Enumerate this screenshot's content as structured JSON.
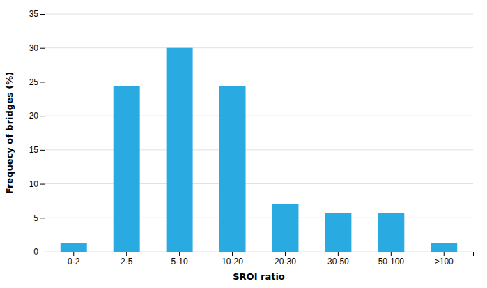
{
  "chart_data": {
    "type": "bar",
    "xlabel": "SROI ratio",
    "ylabel": "Frequecy of bridges (%)",
    "categories": [
      "0-2",
      "2-5",
      "5-10",
      "10-20",
      "20-30",
      "30-50",
      "50-100",
      ">100"
    ],
    "values": [
      1.3,
      24.4,
      30.0,
      24.4,
      7.0,
      5.7,
      5.7,
      1.3
    ],
    "color": "#29ABE2",
    "ylim": [
      0,
      35
    ],
    "yticks": [
      0,
      5,
      10,
      15,
      20,
      25,
      30,
      35
    ],
    "grid": true
  }
}
